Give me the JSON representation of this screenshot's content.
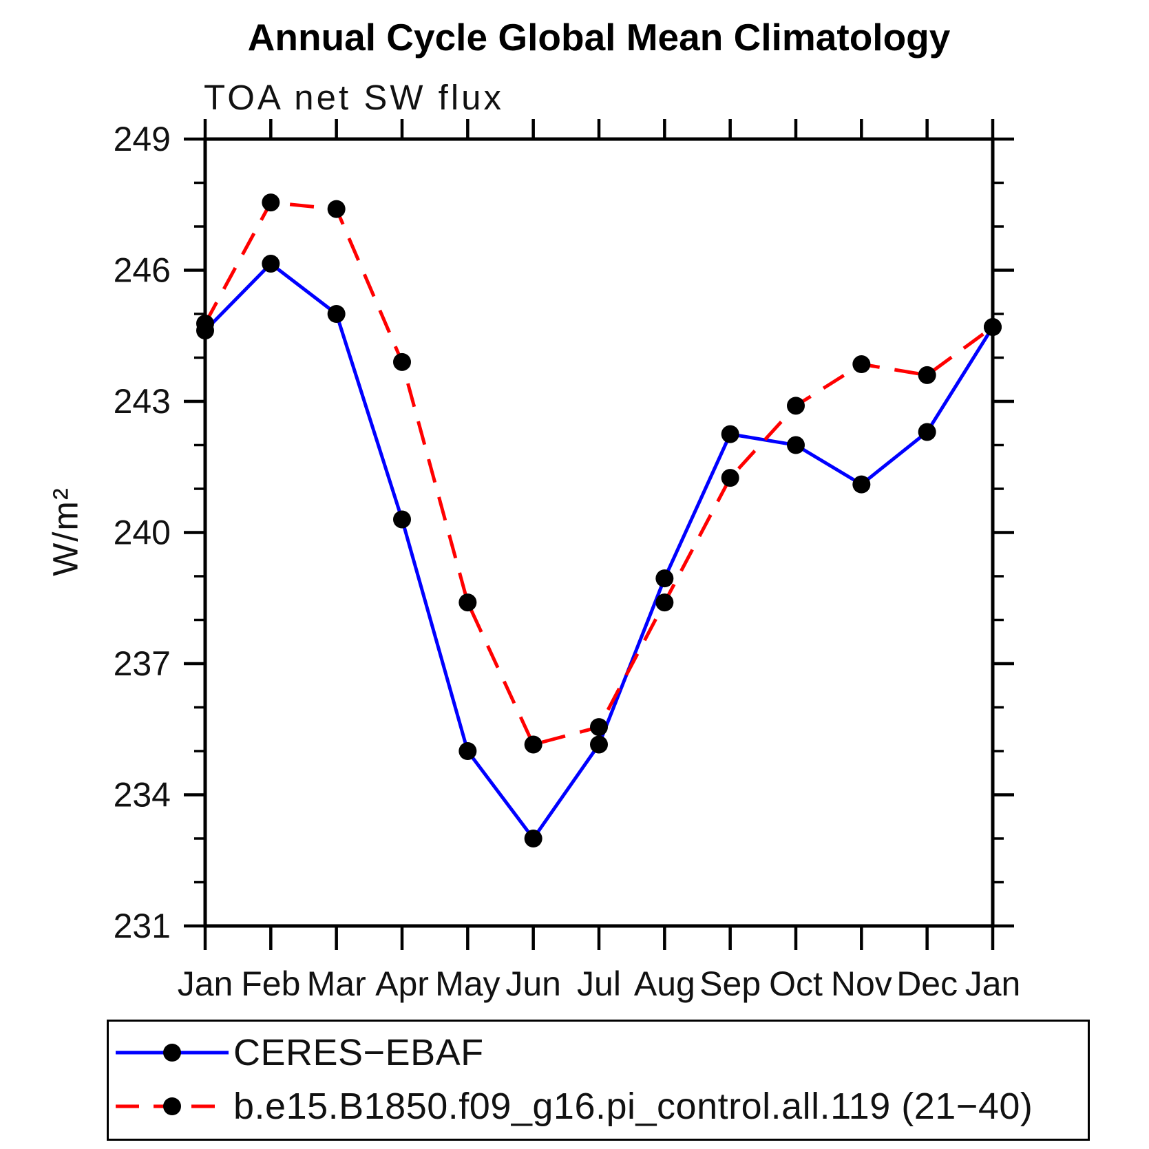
{
  "chart_data": {
    "type": "line",
    "title": "Annual Cycle Global Mean Climatology",
    "subtitle": "TOA net SW flux",
    "ylabel": "W/m²",
    "x_categories": [
      "Jan",
      "Feb",
      "Mar",
      "Apr",
      "May",
      "Jun",
      "Jul",
      "Aug",
      "Sep",
      "Oct",
      "Nov",
      "Dec",
      "Jan"
    ],
    "ylim": [
      231,
      249
    ],
    "y_major_ticks": [
      231,
      234,
      237,
      240,
      243,
      246,
      249
    ],
    "y_minor_tick_interval": 1,
    "grid": false,
    "legend_position": "bottom",
    "axis_color": "#000000",
    "marker_color": "#000000",
    "series": [
      {
        "name": "CERES−EBAF",
        "color": "#0000ff",
        "style": "solid",
        "marker": "circle",
        "values": [
          244.62,
          246.15,
          245.0,
          240.3,
          235.0,
          233.0,
          235.15,
          238.95,
          242.25,
          242.0,
          241.1,
          242.3,
          244.7
        ]
      },
      {
        "name": "b.e15.B1850.f09_g16.pi_control.all.119 (21−40)",
        "color": "#ff0000",
        "style": "dashed",
        "marker": "circle",
        "values": [
          244.78,
          247.55,
          247.4,
          243.9,
          238.4,
          235.15,
          235.55,
          238.4,
          241.25,
          242.9,
          243.85,
          243.6,
          244.7
        ]
      }
    ]
  }
}
